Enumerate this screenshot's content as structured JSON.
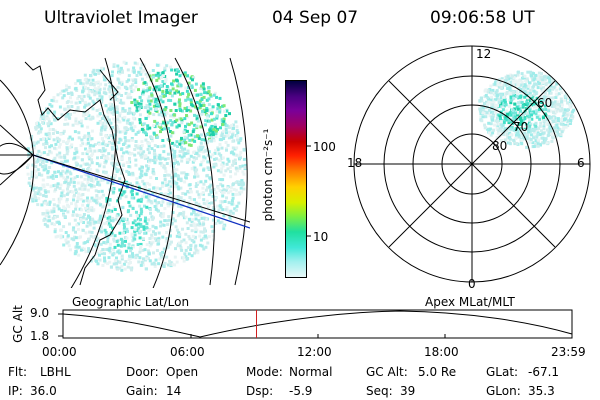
{
  "header": {
    "title": "Ultraviolet Imager",
    "date": "04 Sep 07",
    "time": "09:06:58 UT"
  },
  "colorbar": {
    "label": "photon cm⁻²s⁻¹",
    "ticks": [
      "100",
      "10"
    ],
    "colors": [
      "#000040",
      "#4b0082",
      "#7a0099",
      "#a00060",
      "#c80000",
      "#ff2000",
      "#ff8000",
      "#ffd000",
      "#d8f000",
      "#80f040",
      "#20e0a0",
      "#40e8d8",
      "#a0f0ee",
      "#e8f8f8"
    ]
  },
  "polar_plot": {
    "mlt_labels": [
      "12",
      "18",
      "6",
      "0"
    ],
    "lat_labels": [
      "60",
      "70",
      "80"
    ]
  },
  "left_panel": {
    "coord_label": "Geographic Lat/Lon"
  },
  "right_panel": {
    "coord_label": "Apex MLat/MLT"
  },
  "orbit_strip": {
    "ylabel": "GC Alt",
    "y_ticks": [
      "9.0",
      "1.8"
    ],
    "x_ticks": [
      "00:00",
      "06:00",
      "12:00",
      "18:00",
      "23:59"
    ],
    "marker_time": "09:06:58",
    "marker_color": "#d02020"
  },
  "footer": {
    "row1": [
      {
        "label": "Flt:",
        "value": "LBHL"
      },
      {
        "label": "Door:",
        "value": "Open"
      },
      {
        "label": "Mode:",
        "value": "Normal"
      },
      {
        "label": "GC Alt:",
        "value": "5.0 Re"
      },
      {
        "label": "GLat:",
        "value": "-67.1"
      }
    ],
    "row2": [
      {
        "label": "IP:",
        "value": "36.0"
      },
      {
        "label": "Gain:",
        "value": "14"
      },
      {
        "label": "Dsp:",
        "value": "-5.9"
      },
      {
        "label": "Seq:",
        "value": "39"
      },
      {
        "label": "GLon:",
        "value": "35.3"
      }
    ]
  }
}
